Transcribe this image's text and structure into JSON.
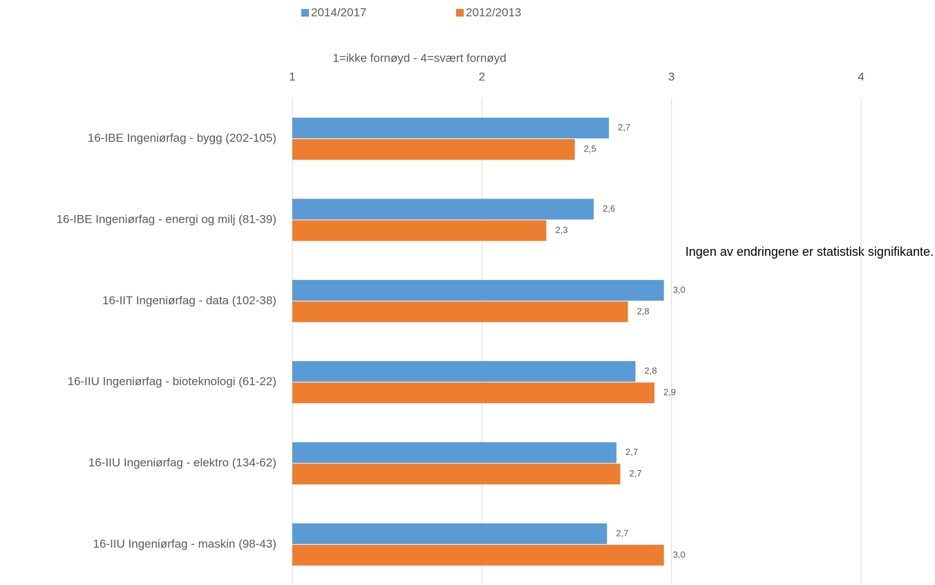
{
  "chart_data": {
    "type": "hbar",
    "xlabel": "1=ikke fornøyd - 4=svært fornøyd",
    "annotation": "Ingen av endringene er statistisk signifikante.",
    "categories": [
      "16-IBE Ingeniørfag - bygg (202-105)",
      "16-IBE Ingeniørfag - energi og milj (81-39)",
      "16-IIT Ingeniørfag - data (102-38)",
      "16-IIU Ingeniørfag - bioteknologi (61-22)",
      "16-IIU Ingeniørfag - elektro (134-62)",
      "16-IIU Ingeniørfag - maskin (98-43)"
    ],
    "series": [
      {
        "name": "2014/2017",
        "color": "#5b9bd5",
        "values": [
          2.67,
          2.59,
          2.96,
          2.81,
          2.71,
          2.66
        ],
        "value_labels": [
          "2,7",
          "2,6",
          "3,0",
          "2,8",
          "2,7",
          "2,7"
        ]
      },
      {
        "name": "2012/2013",
        "color": "#ed7d31",
        "values": [
          2.49,
          2.34,
          2.77,
          2.91,
          2.73,
          2.96
        ],
        "value_labels": [
          "2,5",
          "2,3",
          "2,8",
          "2,9",
          "2,7",
          "3,0"
        ]
      }
    ],
    "xlim": [
      1,
      4
    ],
    "xticks": [
      1,
      2,
      3,
      4
    ],
    "grid": true,
    "legend": "top"
  }
}
